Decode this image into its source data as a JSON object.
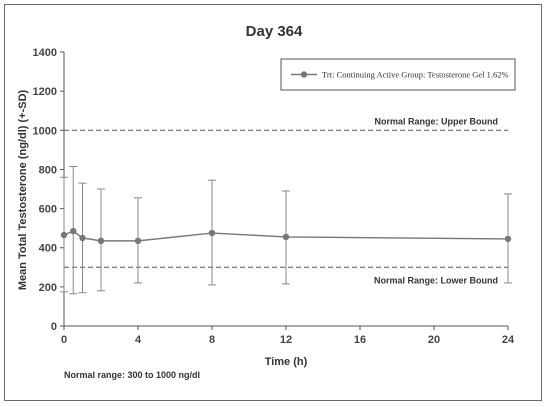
{
  "chart_data": {
    "type": "line",
    "title": "Day 364",
    "xlabel": "Time (h)",
    "ylabel": "Mean Total Testosterone (ng/dl) (+-SD)",
    "xlim": [
      0,
      24
    ],
    "ylim": [
      0,
      1400
    ],
    "xticks": [
      0,
      4,
      8,
      12,
      16,
      20,
      24
    ],
    "yticks": [
      0,
      200,
      400,
      600,
      800,
      1000,
      1200,
      1400
    ],
    "grid": false,
    "legend_position": "top-right",
    "series": [
      {
        "name": "Trt: Continuing Active Group: Testosterone Gel 1.62%",
        "color": "#777777",
        "x": [
          0,
          0.5,
          1,
          2,
          4,
          8,
          12,
          24
        ],
        "y": [
          465,
          485,
          450,
          435,
          435,
          475,
          455,
          445
        ],
        "sd_low": [
          175,
          165,
          170,
          180,
          220,
          210,
          215,
          220
        ],
        "sd_high": [
          760,
          815,
          730,
          700,
          655,
          745,
          690,
          675
        ]
      }
    ],
    "reference_lines": [
      {
        "label": "Normal Range: Upper Bound",
        "y": 1000
      },
      {
        "label": "Normal Range: Lower Bound",
        "y": 300
      }
    ],
    "footnote": "Normal range: 300 to 1000 ng/dl"
  }
}
